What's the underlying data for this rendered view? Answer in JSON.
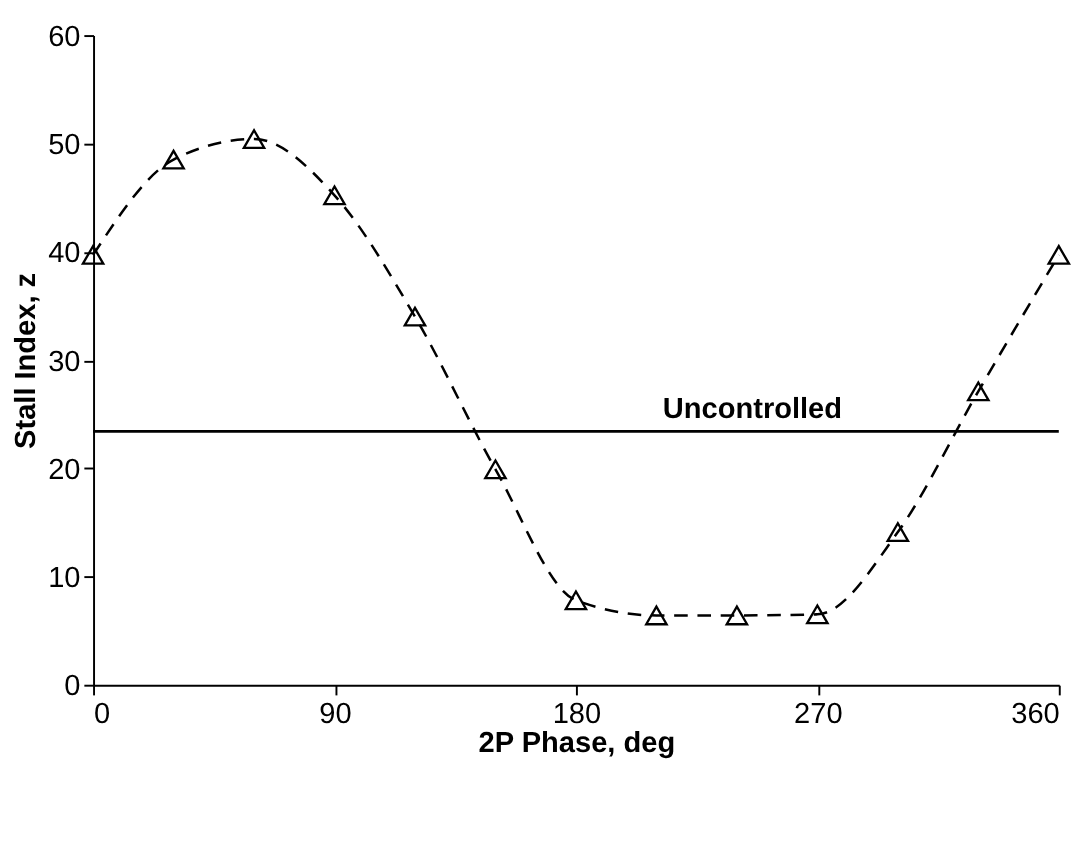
{
  "chart_data": {
    "type": "line",
    "xlabel": "2P Phase, deg",
    "ylabel": "Stall Index, z",
    "x": [
      0,
      30,
      60,
      90,
      120,
      150,
      180,
      210,
      240,
      270,
      300,
      330,
      360
    ],
    "series": [
      {
        "color": "#000000",
        "values": [
          39.7,
          48.5,
          50.4,
          45.2,
          34.0,
          19.9,
          7.8,
          6.4,
          6.4,
          6.5,
          14.1,
          27.1,
          39.7
        ]
      }
    ],
    "xlim": [
      0,
      360
    ],
    "xticks": [
      0,
      90,
      180,
      270,
      360
    ],
    "ylim": [
      0,
      60
    ],
    "yticks": [
      0,
      10,
      20,
      30,
      40,
      50,
      60
    ],
    "ref_lines": [
      {
        "axis": "y",
        "value": 23.4,
        "label": "Uncontrolled",
        "color": "#000000",
        "line_style": "solid"
      }
    ],
    "marker": "triangle",
    "line_style": "dashed",
    "grid": false
  }
}
